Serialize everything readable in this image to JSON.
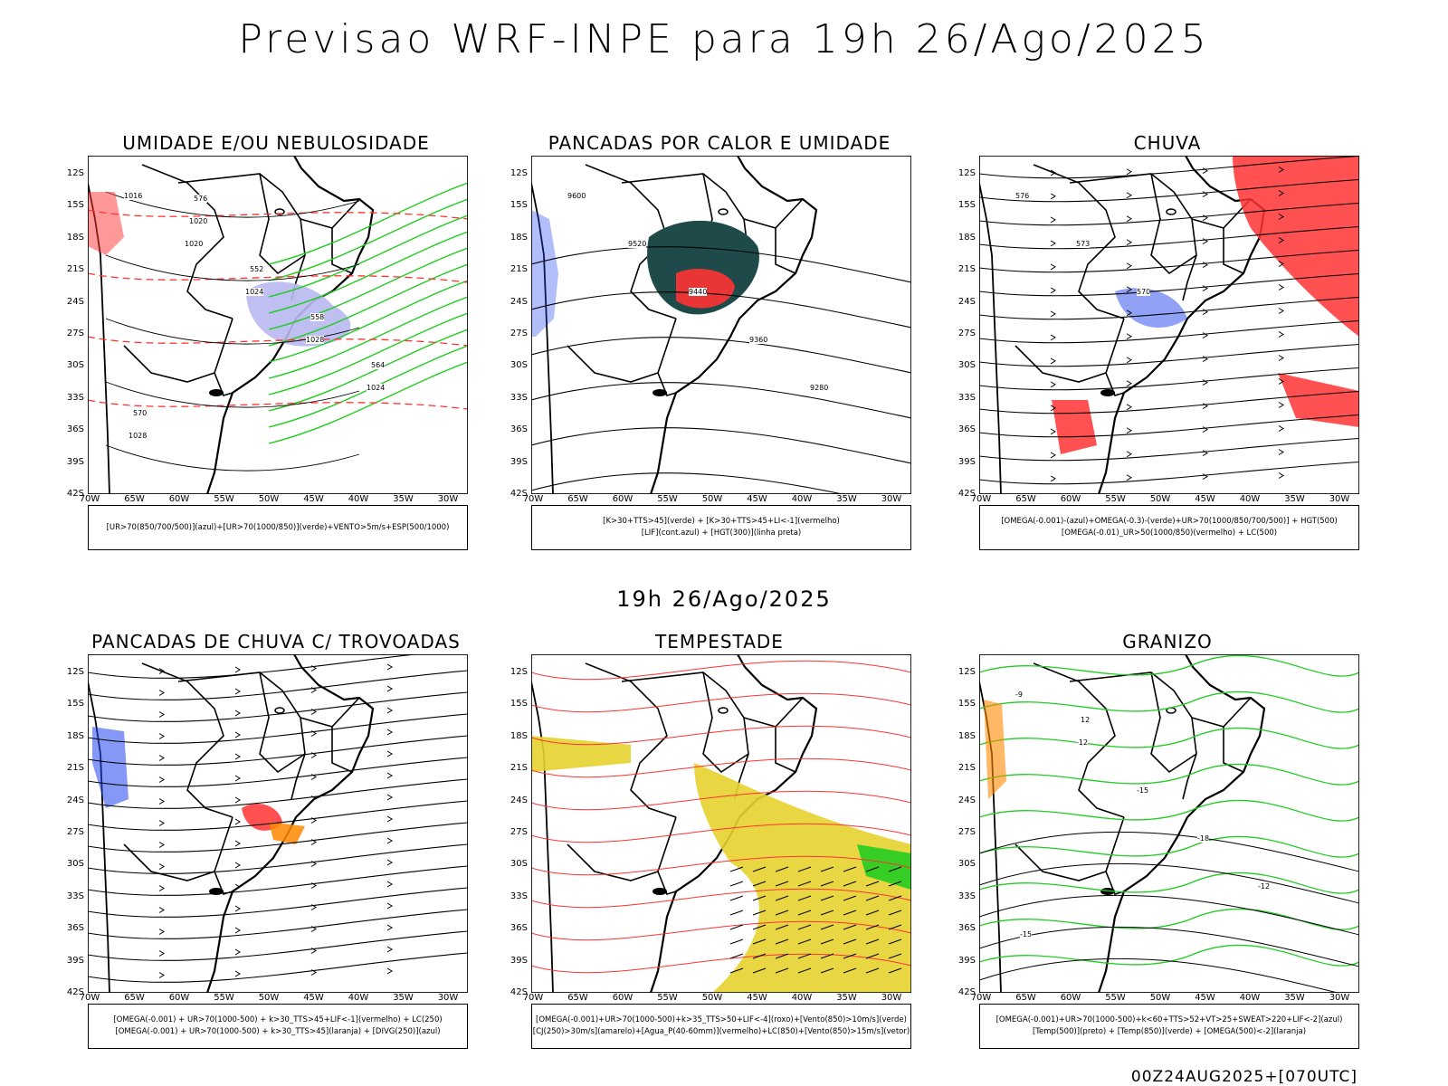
{
  "title": "Previsao WRF-INPE  para 19h 26/Ago/2025",
  "mid_date": "19h 26/Ago/2025",
  "footer": "00Z24AUG2025+[070UTC]",
  "lat_labels": [
    "12S",
    "15S",
    "18S",
    "21S",
    "24S",
    "27S",
    "30S",
    "33S",
    "36S",
    "39S",
    "42S"
  ],
  "lon_labels": [
    "70W",
    "65W",
    "60W",
    "55W",
    "50W",
    "45W",
    "40W",
    "35W",
    "30W"
  ],
  "colors": {
    "humidity_blue": "#b8b8f0",
    "green": "#22cc22",
    "red": "#ff3333",
    "blue": "#2244ee",
    "teal": "#1f4a4a",
    "yellow": "#e6d22e",
    "orange": "#ff8800"
  },
  "panels": [
    {
      "title": "UMIDADE E/OU NEBULOSIDADE",
      "legend_lines": [
        "[UR>70(850/700/500)](azul)+[UR>70(1000/850)](verde)+VENTO>5m/s+ESP(500/1000)"
      ],
      "contour_labels": [
        "1016",
        "1020",
        "1024",
        "1028",
        "1024",
        "1028",
        "1020",
        "552",
        "558",
        "564",
        "570",
        "576"
      ]
    },
    {
      "title": "PANCADAS POR CALOR E UMIDADE",
      "legend_lines": [
        "[K>30+TTS>45](verde) + [K>30+TTS>45+LI<-1](vermelho)",
        "[LIF](cont.azul) + [HGT(300)](linha preta)"
      ],
      "contour_labels": [
        "9600",
        "9520",
        "9440",
        "9360",
        "9280"
      ]
    },
    {
      "title": "CHUVA",
      "legend_lines": [
        "[OMEGA(-0.001)-(azul)+OMEGA(-0.3)-(verde)+UR>70(1000/850/700/500)] + HGT(500)",
        "[OMEGA(-0.01)_UR>50(1000/850)(vermelho) + LC(500)"
      ],
      "contour_labels": [
        "576",
        "573",
        "570"
      ]
    },
    {
      "title": "PANCADAS DE CHUVA C/ TROVOADAS",
      "legend_lines": [
        "[OMEGA(-0.001) + UR>70(1000-500) + k>30_TTS>45+LIF<-1](vermelho) + LC(250)",
        "[OMEGA(-0.001) + UR>70(1000-500) + k>30_TTS>45](laranja) + [DIVG(250)](azul)"
      ],
      "contour_labels": []
    },
    {
      "title": "TEMPESTADE",
      "legend_lines": [
        "[OMEGA(-0.001)+UR>70(1000-500)+k>35_TTS>50+LIF<-4](roxo)+[Vento(850)>10m/s](verde)",
        "[CJ(250)>30m/s](amarelo)+[Agua_P(40-60mm)](vermelho)+LC(850)+[Vento(850)>15m/s](vetor)"
      ],
      "contour_labels": []
    },
    {
      "title": "GRANIZO",
      "legend_lines": [
        "[OMEGA(-0.001)+UR>70(1000-500)+k<60+TTS>52+VT>25+SWEAT>220+LIF<-2](azul)",
        "[Temp(500)](preto) + [Temp(850)](verde) + [OMEGA(500)<-2](laranja)"
      ],
      "contour_labels": [
        "-9",
        "-12",
        "-15",
        "-18",
        "-12",
        "-15",
        "12"
      ]
    }
  ]
}
